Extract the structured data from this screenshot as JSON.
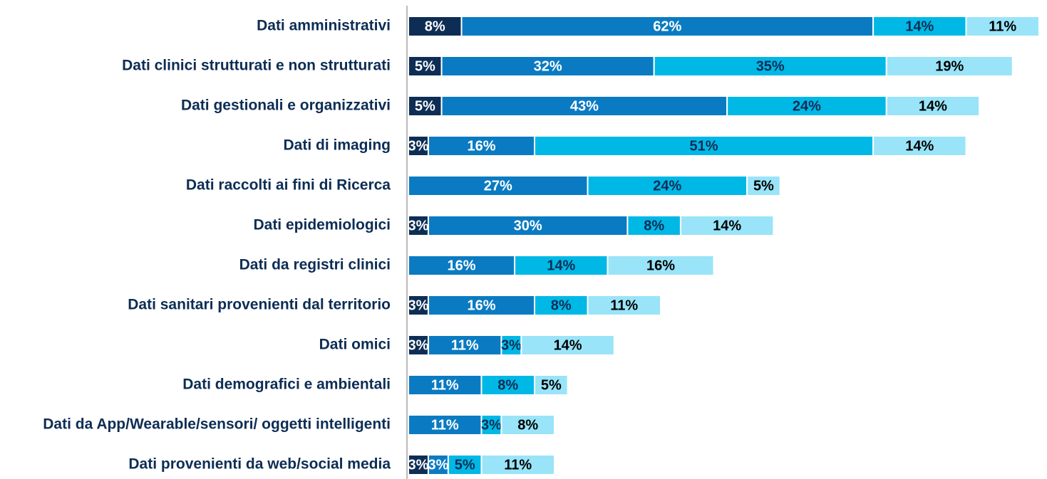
{
  "chart_data": {
    "type": "stacked_barh",
    "categories": [
      "Dati amministrativi",
      "Dati clinici strutturati e non strutturati",
      "Dati gestionali e organizzativi",
      "Dati di imaging",
      "Dati raccolti ai fini di Ricerca",
      "Dati epidemiologici",
      "Dati da registri clinici",
      "Dati sanitari provenienti dal territorio",
      "Dati omici",
      "Dati demografici e ambientali",
      "Dati da App/Wearable/sensori/ oggetti intelligenti",
      "Dati provenienti da web/social media"
    ],
    "series": [
      {
        "color": "#0d2d54",
        "values": [
          8,
          5,
          5,
          3,
          null,
          3,
          null,
          3,
          3,
          null,
          null,
          3
        ],
        "value_labels": [
          "8%",
          "5%",
          "5%",
          "3%",
          null,
          "3%",
          null,
          "3%",
          "3%",
          null,
          null,
          "3%"
        ]
      },
      {
        "color": "#0a7bc2",
        "values": [
          62,
          32,
          43,
          16,
          27,
          30,
          16,
          16,
          11,
          11,
          11,
          3
        ],
        "value_labels": [
          "62%",
          "32%",
          "43%",
          "16%",
          "27%",
          "30%",
          "16%",
          "16%",
          "11%",
          "11%",
          "11%",
          "3%"
        ]
      },
      {
        "color": "#00b8e6",
        "values": [
          14,
          35,
          24,
          51,
          24,
          8,
          14,
          8,
          3,
          8,
          3,
          5
        ],
        "value_labels": [
          "14%",
          "35%",
          "24%",
          "51%",
          "24%",
          "8%",
          "14%",
          "8%",
          "3%",
          "8%",
          "3%",
          "5%"
        ]
      },
      {
        "color": "#99e4f8",
        "values": [
          11,
          19,
          14,
          14,
          5,
          14,
          16,
          11,
          14,
          5,
          8,
          11
        ],
        "value_labels": [
          "11%",
          "19%",
          "14%",
          "14%",
          "5%",
          "14%",
          "16%",
          "11%",
          "14%",
          "5%",
          "8%",
          "11%"
        ]
      }
    ]
  }
}
